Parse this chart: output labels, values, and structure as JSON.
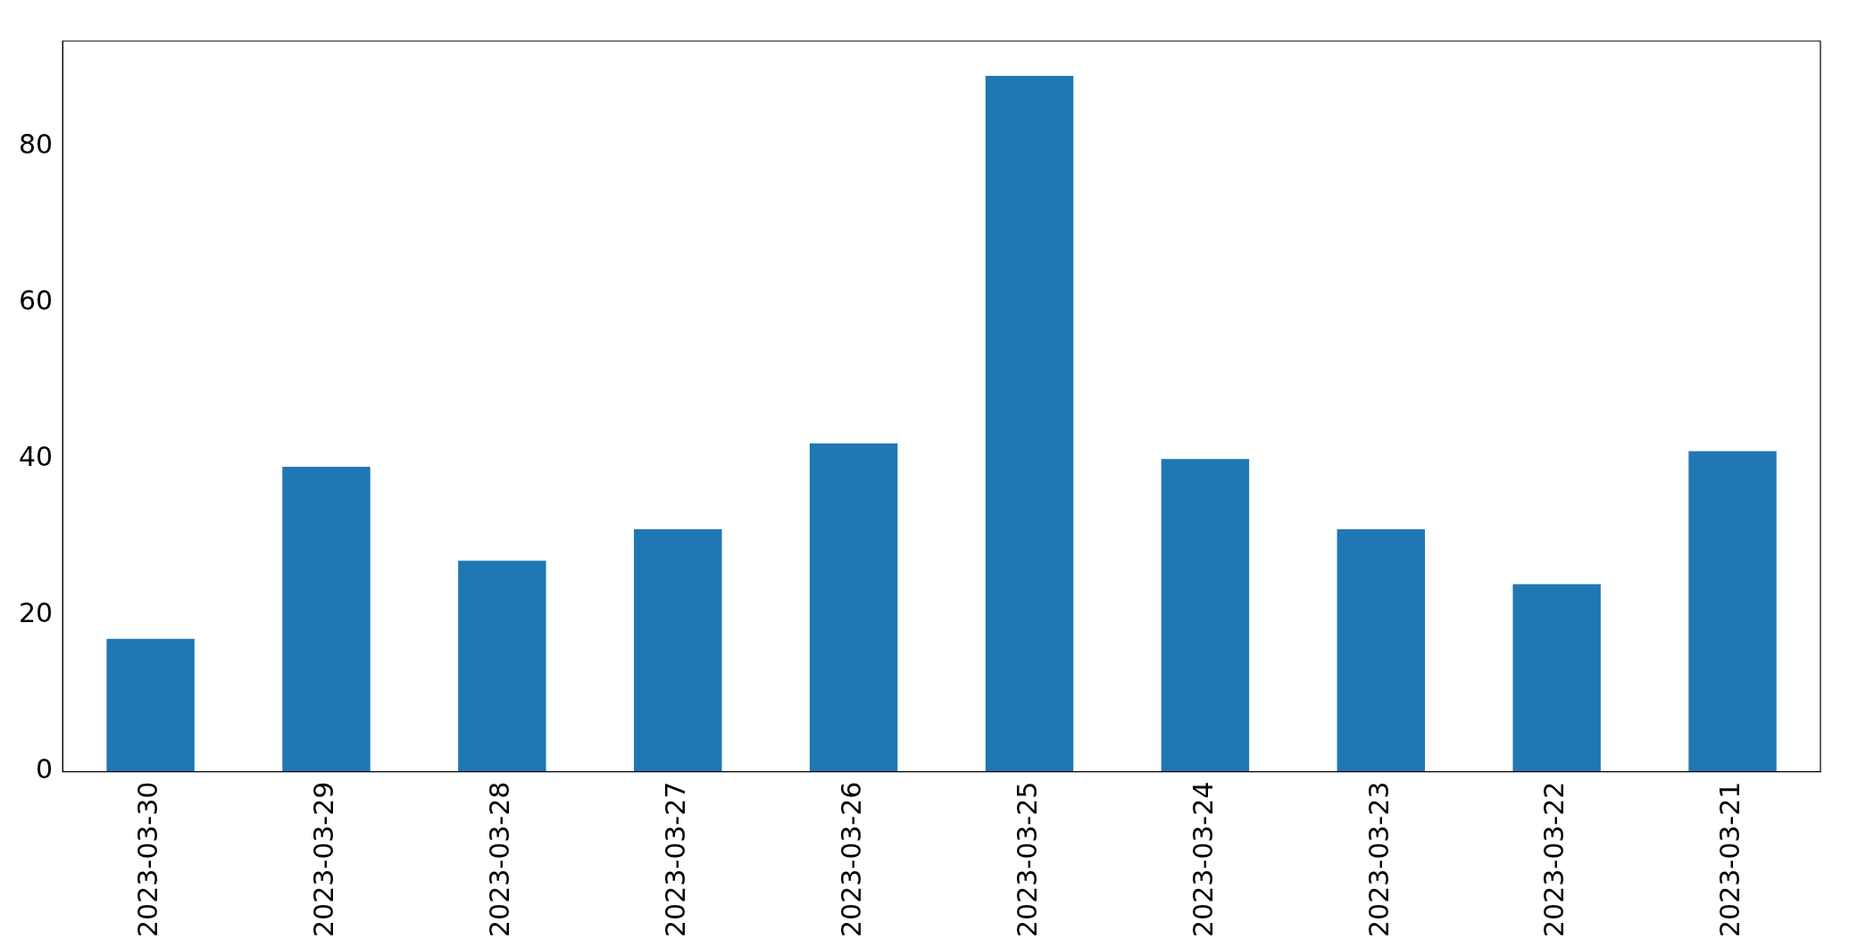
{
  "chart_data": {
    "type": "bar",
    "categories": [
      "2023-03-30",
      "2023-03-29",
      "2023-03-28",
      "2023-03-27",
      "2023-03-26",
      "2023-03-25",
      "2023-03-24",
      "2023-03-23",
      "2023-03-22",
      "2023-03-21"
    ],
    "values": [
      17,
      39,
      27,
      31,
      42,
      89,
      40,
      31,
      24,
      41
    ],
    "color": "#1f77b4",
    "ylim": [
      0,
      93.45
    ],
    "yticks": [
      0,
      20,
      40,
      60,
      80
    ],
    "grid": false,
    "legend": false
  }
}
